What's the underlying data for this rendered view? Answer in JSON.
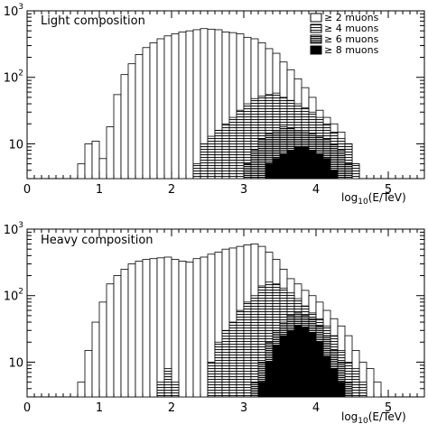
{
  "chart_data": [
    {
      "type": "histogram",
      "title": "Light composition",
      "xlabel": "log_10(E/TeV)",
      "xlim": [
        0,
        5.5
      ],
      "ylim": [
        3,
        1000
      ],
      "yscale": "log",
      "x_ticks": [
        "0",
        "1",
        "2",
        "3",
        "4",
        "5"
      ],
      "y_ticks": [
        {
          "base": "10",
          "exp": "3"
        },
        {
          "base": "10",
          "exp": "2"
        },
        {
          "base": "10",
          "exp": ""
        }
      ],
      "bin_width": 0.1,
      "legend_position": "top-right",
      "series": [
        {
          "name": "≥ 2 muons",
          "fill": "none",
          "x": [
            0.7,
            0.8,
            0.9,
            1.0,
            1.1,
            1.2,
            1.3,
            1.4,
            1.5,
            1.6,
            1.7,
            1.8,
            1.9,
            2.0,
            2.1,
            2.2,
            2.3,
            2.4,
            2.5,
            2.6,
            2.7,
            2.8,
            2.9,
            3.0,
            3.1,
            3.2,
            3.3,
            3.4,
            3.5,
            3.6,
            3.7,
            3.8,
            3.9,
            4.0,
            4.1,
            4.2,
            4.3,
            4.4,
            4.5
          ],
          "values": [
            5,
            10,
            11,
            6,
            18,
            55,
            110,
            160,
            220,
            280,
            330,
            380,
            420,
            450,
            480,
            500,
            520,
            540,
            530,
            520,
            480,
            470,
            450,
            400,
            380,
            330,
            270,
            230,
            170,
            130,
            95,
            70,
            50,
            32,
            25,
            20,
            15,
            10,
            5
          ]
        },
        {
          "name": "≥ 4 muons",
          "fill": "horizontal-lines",
          "x": [
            2.3,
            2.4,
            2.5,
            2.6,
            2.7,
            2.8,
            2.9,
            3.0,
            3.1,
            3.2,
            3.3,
            3.4,
            3.5,
            3.6,
            3.7,
            3.8,
            3.9,
            4.0,
            4.1,
            4.2,
            4.3,
            4.4,
            4.5
          ],
          "values": [
            5,
            10,
            13,
            16,
            20,
            25,
            32,
            40,
            48,
            52,
            55,
            58,
            50,
            45,
            40,
            35,
            30,
            25,
            20,
            15,
            12,
            10,
            5
          ]
        },
        {
          "name": "≥ 6 muons",
          "fill": "dense-lines",
          "x": [
            3.0,
            3.1,
            3.2,
            3.3,
            3.4,
            3.5,
            3.6,
            3.7,
            3.8,
            3.9,
            4.0,
            4.1,
            4.2,
            4.3,
            4.4
          ],
          "values": [
            5,
            8,
            12,
            14,
            16,
            18,
            17,
            16,
            15,
            14,
            13,
            12,
            10,
            8,
            5
          ]
        },
        {
          "name": "≥ 8 muons",
          "fill": "solid",
          "x": [
            3.3,
            3.4,
            3.5,
            3.6,
            3.7,
            3.8,
            3.9,
            4.0,
            4.1,
            4.2
          ],
          "values": [
            5,
            6,
            7,
            8,
            9,
            9,
            8,
            7,
            6,
            4
          ]
        }
      ]
    },
    {
      "type": "histogram",
      "title": "Heavy composition",
      "xlabel": "log_10(E/TeV)",
      "xlim": [
        0,
        5.5
      ],
      "ylim": [
        3,
        1000
      ],
      "yscale": "log",
      "x_ticks": [
        "0",
        "1",
        "2",
        "3",
        "4",
        "5"
      ],
      "y_ticks": [
        {
          "base": "10",
          "exp": "3"
        },
        {
          "base": "10",
          "exp": "2"
        },
        {
          "base": "10",
          "exp": ""
        }
      ],
      "bin_width": 0.1,
      "series": [
        {
          "fill": "none",
          "x": [
            0.7,
            0.8,
            0.9,
            1.0,
            1.1,
            1.2,
            1.3,
            1.4,
            1.5,
            1.6,
            1.7,
            1.8,
            1.9,
            2.0,
            2.1,
            2.2,
            2.3,
            2.4,
            2.5,
            2.6,
            2.7,
            2.8,
            2.9,
            3.0,
            3.1,
            3.2,
            3.3,
            3.4,
            3.5,
            3.6,
            3.7,
            3.8,
            3.9,
            4.0,
            4.1,
            4.2,
            4.3,
            4.4,
            4.5,
            4.6,
            4.7,
            4.8
          ],
          "values": [
            5,
            15,
            40,
            80,
            150,
            200,
            250,
            300,
            330,
            350,
            360,
            370,
            380,
            350,
            330,
            320,
            360,
            380,
            420,
            450,
            500,
            520,
            550,
            580,
            600,
            550,
            450,
            350,
            250,
            180,
            150,
            120,
            100,
            80,
            60,
            45,
            35,
            25,
            15,
            10,
            8,
            5
          ]
        },
        {
          "fill": "horizontal-lines",
          "x": [
            1.8,
            1.9,
            2.0,
            2.1,
            2.2,
            2.3,
            2.4,
            2.5,
            2.6,
            2.7,
            2.8,
            2.9,
            3.0,
            3.1,
            3.2,
            3.3,
            3.4,
            3.5,
            3.6,
            3.7,
            3.8,
            3.9,
            4.0,
            4.1,
            4.2,
            4.3,
            4.4,
            4.5,
            4.6
          ],
          "values": [
            5,
            8,
            5,
            0,
            0,
            0,
            0,
            10,
            20,
            30,
            40,
            60,
            80,
            100,
            140,
            160,
            150,
            130,
            110,
            90,
            70,
            55,
            45,
            35,
            25,
            15,
            10,
            8,
            5
          ]
        },
        {
          "fill": "dense-lines",
          "x": [
            3.1,
            3.2,
            3.3,
            3.4,
            3.5,
            3.6,
            3.7,
            3.8,
            3.9,
            4.0,
            4.1,
            4.2,
            4.3,
            4.4
          ],
          "values": [
            5,
            10,
            20,
            30,
            40,
            50,
            55,
            50,
            45,
            35,
            25,
            15,
            10,
            5
          ]
        },
        {
          "fill": "solid",
          "x": [
            3.2,
            3.3,
            3.4,
            3.5,
            3.6,
            3.7,
            3.8,
            3.9,
            4.0,
            4.1,
            4.2,
            4.3
          ],
          "values": [
            5,
            10,
            18,
            25,
            30,
            35,
            33,
            28,
            20,
            12,
            8,
            5
          ]
        }
      ]
    }
  ]
}
